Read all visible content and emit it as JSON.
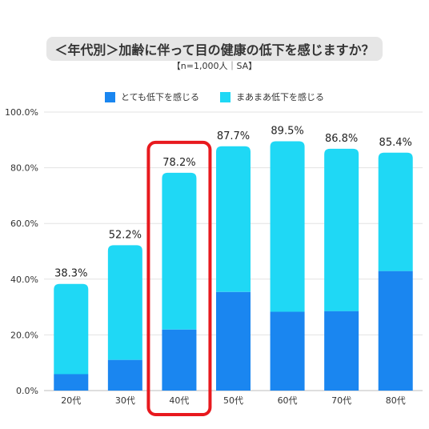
{
  "chart_data": {
    "type": "bar",
    "stacked": true,
    "title": "＜年代別＞加齢に伴って目の健康の低下を感じますか？",
    "subtitle": "【n=1,000人｜SA】",
    "categories": [
      "20代",
      "30代",
      "40代",
      "50代",
      "60代",
      "70代",
      "80代"
    ],
    "series": [
      {
        "name": "とても低下を感じる",
        "color": "#1a86f0",
        "values": [
          5.9,
          11.0,
          21.9,
          35.4,
          28.3,
          28.5,
          42.9
        ]
      },
      {
        "name": "まあまあ低下を感じる",
        "color": "#1fd8f5",
        "values": [
          32.4,
          41.2,
          56.3,
          52.3,
          61.2,
          58.3,
          42.5
        ]
      }
    ],
    "totals": [
      "38.3%",
      "52.2%",
      "78.2%",
      "87.7%",
      "89.5%",
      "86.8%",
      "85.4%"
    ],
    "total_values": [
      38.3,
      52.2,
      78.2,
      87.7,
      89.5,
      86.8,
      85.4
    ],
    "ylim": [
      0,
      100
    ],
    "yticks": [
      "0.0%",
      "20.0%",
      "40.0%",
      "60.0%",
      "80.0%",
      "100.0%"
    ],
    "ytick_values": [
      0,
      20,
      40,
      60,
      80,
      100
    ],
    "grid": true,
    "legend_position": "top",
    "highlight_category": "40代",
    "highlight_color": "#e8191e"
  }
}
